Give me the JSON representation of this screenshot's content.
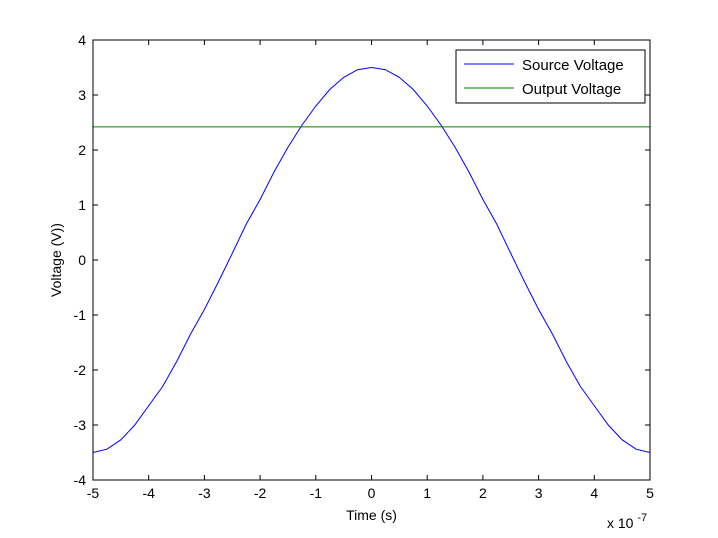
{
  "chart_data": {
    "type": "line",
    "xlabel": "Time (s)",
    "ylabel": "Voltage (V))",
    "x_multiplier_base": "x 10",
    "x_multiplier_exp": "-7",
    "xlim": [
      -5,
      5
    ],
    "ylim": [
      -4,
      4
    ],
    "xticks": [
      -5,
      -4,
      -3,
      -2,
      -1,
      0,
      1,
      2,
      3,
      4,
      5
    ],
    "xtick_labels": [
      "-5",
      "-4",
      "-3",
      "-2",
      "-1",
      "0",
      "1",
      "2",
      "3",
      "4",
      "5"
    ],
    "yticks": [
      -4,
      -3,
      -2,
      -1,
      0,
      1,
      2,
      3,
      4
    ],
    "ytick_labels": [
      "-4",
      "-3",
      "-2",
      "-1",
      "0",
      "1",
      "2",
      "3",
      "4"
    ],
    "grid": false,
    "legend_location": "top-right",
    "series": [
      {
        "name": "Source Voltage",
        "color": "#0000ff",
        "x": [
          -5,
          -4.75,
          -4.5,
          -4.25,
          -4,
          -3.75,
          -3.5,
          -3.25,
          -3,
          -2.75,
          -2.5,
          -2.25,
          -2,
          -1.75,
          -1.5,
          -1.25,
          -1,
          -0.75,
          -0.5,
          -0.25,
          0,
          0.25,
          0.5,
          0.75,
          1,
          1.25,
          1.5,
          1.75,
          2,
          2.25,
          2.5,
          2.75,
          3,
          3.25,
          3.5,
          3.75,
          4,
          4.25,
          4.5,
          4.75,
          5
        ],
        "y": [
          -3.5,
          -3.44,
          -3.27,
          -3.0,
          -2.65,
          -2.3,
          -1.85,
          -1.35,
          -0.9,
          -0.4,
          0.12,
          0.65,
          1.1,
          1.6,
          2.05,
          2.45,
          2.8,
          3.1,
          3.32,
          3.46,
          3.5,
          3.46,
          3.32,
          3.1,
          2.8,
          2.45,
          2.05,
          1.6,
          1.1,
          0.65,
          0.12,
          -0.4,
          -0.9,
          -1.35,
          -1.85,
          -2.3,
          -2.65,
          -3.0,
          -3.27,
          -3.44,
          -3.5
        ]
      },
      {
        "name": "Output Voltage",
        "color": "#008000",
        "x": [
          -5,
          5
        ],
        "y": [
          2.42,
          2.42
        ]
      }
    ]
  }
}
